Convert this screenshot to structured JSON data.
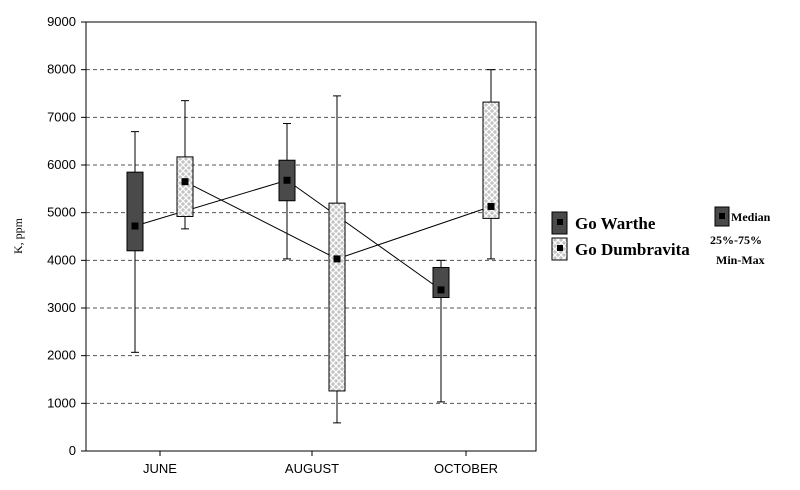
{
  "chart_data": {
    "type": "boxplot",
    "ylabel": "K, ppm",
    "ylim": [
      0,
      9000
    ],
    "yticks": [
      0,
      1000,
      2000,
      3000,
      4000,
      5000,
      6000,
      7000,
      8000,
      9000
    ],
    "grid": "horizontal dashed",
    "categories": [
      "JUNE",
      "AUGUST",
      "OCTOBER"
    ],
    "series": [
      {
        "name": "Go Warthe",
        "fill": "dark",
        "boxes": [
          {
            "category": "JUNE",
            "min": 2070,
            "q1": 4200,
            "median": 4720,
            "q3": 5850,
            "max": 6700
          },
          {
            "category": "AUGUST",
            "min": 4030,
            "q1": 5250,
            "median": 5680,
            "q3": 6100,
            "max": 6870
          },
          {
            "category": "OCTOBER",
            "min": 1030,
            "q1": 3220,
            "median": 3380,
            "q3": 3850,
            "max": 4000
          }
        ]
      },
      {
        "name": "Go Dumbravita",
        "fill": "crosshatch",
        "boxes": [
          {
            "category": "JUNE",
            "min": 4660,
            "q1": 4920,
            "median": 5650,
            "q3": 6170,
            "max": 7350
          },
          {
            "category": "AUGUST",
            "min": 590,
            "q1": 1260,
            "median": 4030,
            "q3": 5200,
            "max": 7450
          },
          {
            "category": "OCTOBER",
            "min": 4030,
            "q1": 4880,
            "median": 5130,
            "q3": 7320,
            "max": 8000
          }
        ]
      }
    ],
    "key": {
      "median_label": "Median",
      "box_label": "25%-75%",
      "whisker_label": "Min-Max"
    },
    "colors": {
      "warthe_fill": "#4a4a4a",
      "dumbravita_fill": "#bdbdbd",
      "line": "#000000",
      "grid": "#555555"
    }
  }
}
